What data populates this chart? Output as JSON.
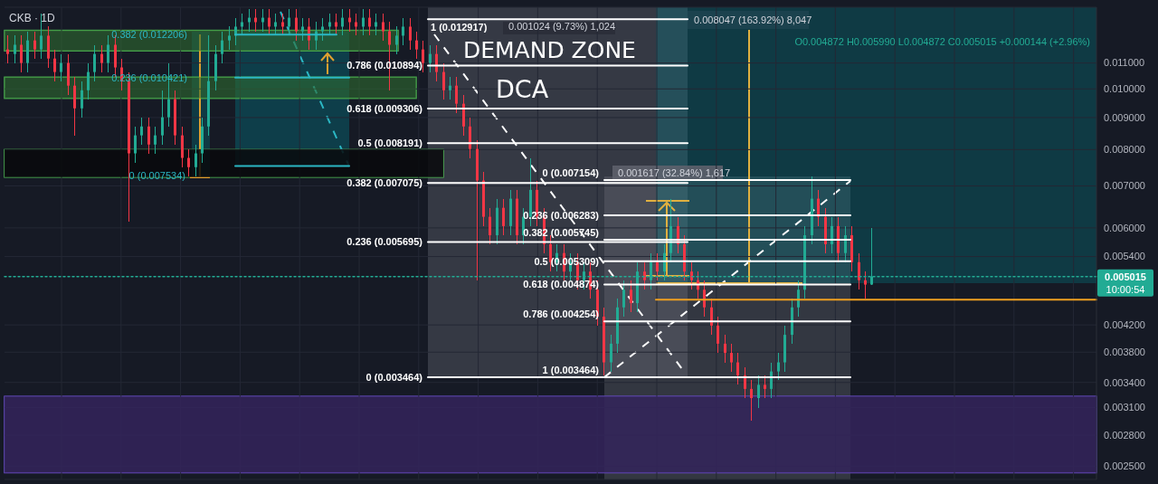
{
  "chart_data": {
    "type": "candlestick",
    "title": "CKB · 1D",
    "categories": [
      null,
      null,
      null,
      null,
      null,
      null,
      null,
      null,
      null,
      null,
      null,
      null,
      null,
      null,
      null,
      null,
      null,
      null,
      null,
      null,
      null,
      null,
      null,
      null,
      null,
      null,
      null,
      null,
      null,
      null,
      null,
      null,
      null,
      null,
      null,
      null,
      null,
      null,
      null,
      null,
      null,
      null,
      null,
      null,
      null,
      null,
      null,
      null,
      null,
      null,
      null,
      null,
      null,
      null,
      null,
      null,
      null,
      null,
      null,
      null,
      null,
      null,
      null,
      null,
      null,
      null,
      null,
      null,
      null,
      null,
      null,
      null,
      null,
      null,
      null,
      null,
      null,
      null,
      null,
      null,
      null,
      null,
      null,
      null,
      null,
      null,
      null,
      null,
      null,
      null,
      null,
      null,
      null,
      null,
      null,
      null,
      null,
      null,
      null,
      null,
      null,
      null,
      null,
      null,
      null,
      null,
      null,
      null,
      null,
      null,
      null,
      null,
      null,
      null,
      null,
      null,
      null,
      null,
      null,
      null,
      null,
      null,
      null,
      null,
      null,
      null,
      null,
      null,
      null,
      null,
      null,
      null,
      null,
      null,
      null,
      null,
      null,
      null,
      null,
      null,
      null,
      null,
      null,
      null,
      null,
      null,
      null,
      null,
      null,
      null,
      null,
      null,
      null,
      null,
      null,
      null,
      null,
      null,
      null,
      null,
      null,
      null,
      null
    ],
    "ohlc": [
      [
        0.01156,
        0.01216,
        0.011,
        0.01137
      ],
      [
        0.01137,
        0.01216,
        0.011,
        0.01176
      ],
      [
        0.01176,
        0.01216,
        0.01064,
        0.011
      ],
      [
        0.011,
        0.01236,
        0.01064,
        0.01195
      ],
      [
        0.01195,
        0.01236,
        0.01118,
        0.01156
      ],
      [
        0.01156,
        0.01321,
        0.01118,
        0.01216
      ],
      [
        0.01216,
        0.01257,
        0.01082,
        0.01118
      ],
      [
        0.01118,
        0.01156,
        0.01029,
        0.01064
      ],
      [
        0.01064,
        0.01137,
        0.01029,
        0.011
      ],
      [
        0.011,
        0.01137,
        0.00979,
        0.01012
      ],
      [
        0.01012,
        0.01046,
        0.00843,
        0.00931
      ],
      [
        0.00931,
        0.01029,
        0.00901,
        0.00995
      ],
      [
        0.00995,
        0.011,
        0.00963,
        0.01064
      ],
      [
        0.01064,
        0.01176,
        0.01029,
        0.01137
      ],
      [
        0.01137,
        0.01176,
        0.01064,
        0.011
      ],
      [
        0.011,
        0.01216,
        0.01064,
        0.01176
      ],
      [
        0.01176,
        0.01216,
        0.01046,
        0.01082
      ],
      [
        0.01082,
        0.01118,
        0.00995,
        0.01029
      ],
      [
        0.01029,
        0.01064,
        0.00614,
        0.00789
      ],
      [
        0.00789,
        0.00871,
        0.00763,
        0.00843
      ],
      [
        0.00843,
        0.00901,
        0.00815,
        0.00871
      ],
      [
        0.00871,
        0.00901,
        0.00789,
        0.00815
      ],
      [
        0.00815,
        0.00871,
        0.00789,
        0.00843
      ],
      [
        0.00843,
        0.00995,
        0.00815,
        0.00901
      ],
      [
        0.00901,
        0.011,
        0.00871,
        0.00963
      ],
      [
        0.00963,
        0.00995,
        0.00815,
        0.00843
      ],
      [
        0.00843,
        0.00871,
        0.0075,
        0.00776
      ],
      [
        0.00776,
        0.00802,
        0.00726,
        0.0075
      ],
      [
        0.0075,
        0.00815,
        0.00726,
        0.00789
      ],
      [
        0.00789,
        0.00901,
        0.00763,
        0.00871
      ],
      [
        0.00871,
        0.01216,
        0.00843,
        0.01029
      ],
      [
        0.01029,
        0.01176,
        0.00995,
        0.01137
      ],
      [
        0.01137,
        0.01236,
        0.011,
        0.01195
      ],
      [
        0.01195,
        0.01257,
        0.01156,
        0.01216
      ],
      [
        0.01216,
        0.01299,
        0.01176,
        0.01257
      ],
      [
        0.01257,
        0.01321,
        0.01216,
        0.01278
      ],
      [
        0.01278,
        0.01343,
        0.01236,
        0.01299
      ],
      [
        0.01299,
        0.01343,
        0.01236,
        0.01278
      ],
      [
        0.01278,
        0.01343,
        0.01236,
        0.01299
      ],
      [
        0.01299,
        0.01343,
        0.01216,
        0.01257
      ],
      [
        0.01257,
        0.01321,
        0.01216,
        0.01278
      ],
      [
        0.01278,
        0.01321,
        0.01216,
        0.01257
      ],
      [
        0.01257,
        0.01343,
        0.01216,
        0.01299
      ],
      [
        0.01299,
        0.01343,
        0.01195,
        0.01236
      ],
      [
        0.01236,
        0.01299,
        0.01195,
        0.01257
      ],
      [
        0.01257,
        0.01299,
        0.01156,
        0.01195
      ],
      [
        0.01195,
        0.01278,
        0.01156,
        0.01236
      ],
      [
        0.01236,
        0.01299,
        0.01195,
        0.01257
      ],
      [
        0.01257,
        0.01321,
        0.01216,
        0.01278
      ],
      [
        0.01278,
        0.01321,
        0.01216,
        0.01257
      ],
      [
        0.01257,
        0.01343,
        0.01216,
        0.01299
      ],
      [
        0.01299,
        0.01343,
        0.01236,
        0.01278
      ],
      [
        0.01278,
        0.01321,
        0.01216,
        0.01257
      ],
      [
        0.01257,
        0.01343,
        0.01216,
        0.01299
      ],
      [
        0.01299,
        0.01343,
        0.01216,
        0.01257
      ],
      [
        0.01257,
        0.01321,
        0.01216,
        0.01278
      ],
      [
        0.01278,
        0.01321,
        0.01195,
        0.01236
      ],
      [
        0.01236,
        0.01278,
        0.00995,
        0.01176
      ],
      [
        0.01176,
        0.01257,
        0.01137,
        0.01216
      ],
      [
        0.01216,
        0.01299,
        0.01176,
        0.01257
      ],
      [
        0.01257,
        0.01299,
        0.01156,
        0.01195
      ],
      [
        0.01195,
        0.01236,
        0.01118,
        0.01156
      ],
      [
        0.01156,
        0.01195,
        0.01064,
        0.011
      ],
      [
        0.011,
        0.01176,
        0.01064,
        0.01137
      ],
      [
        0.01137,
        0.01176,
        0.01029,
        0.01064
      ],
      [
        0.01064,
        0.011,
        0.00963,
        0.00995
      ],
      [
        0.00995,
        0.01046,
        0.00963,
        0.01012
      ],
      [
        0.01012,
        0.01046,
        0.00916,
        0.00947
      ],
      [
        0.00947,
        0.00979,
        0.00843,
        0.00871
      ],
      [
        0.00871,
        0.00901,
        0.00776,
        0.00802
      ],
      [
        0.00802,
        0.00829,
        0.00495,
        0.00714
      ],
      [
        0.00714,
        0.00738,
        0.00604,
        0.00625
      ],
      [
        0.00625,
        0.00646,
        0.00565,
        0.00584
      ],
      [
        0.00584,
        0.00668,
        0.00565,
        0.00646
      ],
      [
        0.00646,
        0.00668,
        0.00584,
        0.00604
      ],
      [
        0.00604,
        0.0069,
        0.00584,
        0.00668
      ],
      [
        0.00668,
        0.0069,
        0.00565,
        0.00584
      ],
      [
        0.00584,
        0.00646,
        0.00565,
        0.00625
      ],
      [
        0.00625,
        0.00776,
        0.00604,
        0.0069
      ],
      [
        0.0069,
        0.00714,
        0.00604,
        0.00625
      ],
      [
        0.00625,
        0.00646,
        0.00547,
        0.00565
      ],
      [
        0.00565,
        0.00584,
        0.00511,
        0.00529
      ],
      [
        0.00529,
        0.00565,
        0.00511,
        0.00547
      ],
      [
        0.00547,
        0.00565,
        0.00495,
        0.00511
      ],
      [
        0.00511,
        0.00547,
        0.00495,
        0.00529
      ],
      [
        0.00529,
        0.00547,
        0.00478,
        0.00495
      ],
      [
        0.00495,
        0.00529,
        0.00478,
        0.00511
      ],
      [
        0.00511,
        0.00529,
        0.00463,
        0.00478
      ],
      [
        0.00478,
        0.00495,
        0.00419,
        0.00433
      ],
      [
        0.00433,
        0.00448,
        0.00349,
        0.00366
      ],
      [
        0.00366,
        0.00405,
        0.00354,
        0.00392
      ],
      [
        0.00392,
        0.00463,
        0.00379,
        0.00448
      ],
      [
        0.00448,
        0.00495,
        0.00433,
        0.00478
      ],
      [
        0.00478,
        0.00495,
        0.0044,
        0.00455
      ],
      [
        0.00455,
        0.00529,
        0.0044,
        0.00511
      ],
      [
        0.00511,
        0.00529,
        0.00478,
        0.00495
      ],
      [
        0.00495,
        0.00547,
        0.00478,
        0.00529
      ],
      [
        0.00529,
        0.00547,
        0.00495,
        0.00511
      ],
      [
        0.00511,
        0.00565,
        0.00495,
        0.00547
      ],
      [
        0.00547,
        0.00668,
        0.00529,
        0.00604
      ],
      [
        0.00604,
        0.00625,
        0.00547,
        0.00565
      ],
      [
        0.00565,
        0.00584,
        0.00495,
        0.00511
      ],
      [
        0.00511,
        0.00529,
        0.00478,
        0.00495
      ],
      [
        0.00495,
        0.00511,
        0.00463,
        0.00478
      ],
      [
        0.00478,
        0.00495,
        0.00433,
        0.00448
      ],
      [
        0.00448,
        0.00463,
        0.00405,
        0.00419
      ],
      [
        0.00419,
        0.00433,
        0.00379,
        0.00392
      ],
      [
        0.00392,
        0.00405,
        0.00366,
        0.00379
      ],
      [
        0.00379,
        0.00392,
        0.00354,
        0.00366
      ],
      [
        0.00366,
        0.00379,
        0.00337,
        0.00349
      ],
      [
        0.00349,
        0.0036,
        0.00321,
        0.00332
      ],
      [
        0.00332,
        0.00343,
        0.00295,
        0.00321
      ],
      [
        0.00321,
        0.00349,
        0.0031,
        0.00337
      ],
      [
        0.00337,
        0.00349,
        0.00321,
        0.00332
      ],
      [
        0.00332,
        0.00366,
        0.00321,
        0.00354
      ],
      [
        0.00354,
        0.00379,
        0.00343,
        0.00366
      ],
      [
        0.00366,
        0.00419,
        0.00354,
        0.00405
      ],
      [
        0.00405,
        0.00463,
        0.00392,
        0.00448
      ],
      [
        0.00448,
        0.00495,
        0.00433,
        0.00478
      ],
      [
        0.00478,
        0.00604,
        0.00463,
        0.00584
      ],
      [
        0.00584,
        0.00726,
        0.00565,
        0.00668
      ],
      [
        0.00668,
        0.0069,
        0.00604,
        0.00625
      ],
      [
        0.00625,
        0.00646,
        0.00547,
        0.00565
      ],
      [
        0.00565,
        0.00625,
        0.00547,
        0.00604
      ],
      [
        0.00604,
        0.00625,
        0.00529,
        0.00547
      ],
      [
        0.00547,
        0.00604,
        0.00529,
        0.00584
      ],
      [
        0.00584,
        0.00604,
        0.00511,
        0.00529
      ],
      [
        0.00529,
        0.00547,
        0.00478,
        0.00495
      ],
      [
        0.00495,
        0.00511,
        0.00463,
        0.004871
      ],
      [
        0.004872,
        0.00599,
        0.004872,
        0.005015
      ],
      null,
      null,
      null,
      null,
      null,
      null,
      null,
      null,
      null,
      null,
      null,
      null,
      null,
      null,
      null,
      null,
      null,
      null,
      null,
      null,
      null,
      null,
      null,
      null,
      null,
      null,
      null,
      null,
      null,
      null,
      null,
      null,
      null
    ],
    "log": true,
    "ylim": [
      0.00238,
      0.0135
    ],
    "yticks": [
      {
        "value": 0.0025,
        "label": "0.002500"
      },
      {
        "value": 0.0028,
        "label": "0.002800"
      },
      {
        "value": 0.0031,
        "label": "0.003100"
      },
      {
        "value": 0.0034,
        "label": "0.003400"
      },
      {
        "value": 0.0038,
        "label": "0.003800"
      },
      {
        "value": 0.0042,
        "label": "0.004200"
      },
      {
        "value": 0.0054,
        "label": "0.005400"
      },
      {
        "value": 0.006,
        "label": "0.006000"
      },
      {
        "value": 0.007,
        "label": "0.007000"
      },
      {
        "value": 0.008,
        "label": "0.008000"
      },
      {
        "value": 0.009,
        "label": "0.009000"
      },
      {
        "value": 0.01,
        "label": "0.010000"
      },
      {
        "value": 0.011,
        "label": "0.011000"
      }
    ],
    "grid": true,
    "tick_labels": "y",
    "bands": [
      {
        "axis": "y",
        "from": 0.00244,
        "to": 0.00323,
        "color": "#34245c"
      },
      {
        "axis": "y",
        "from": 0.0115,
        "to": 0.0124,
        "color": "#2e6b30"
      },
      {
        "axis": "y",
        "from": 0.00966,
        "to": 0.01044,
        "color": "#2e6b30"
      },
      {
        "axis": "y",
        "from": 0.00723,
        "to": 0.008,
        "color": "#08090c"
      }
    ],
    "ref_lines": [
      {
        "axis": "y",
        "value": 0.012206,
        "label": "0.382 (0.012206)",
        "color": "#2bb7c4"
      },
      {
        "axis": "y",
        "value": 0.010421,
        "label": "0.236 (0.010421)",
        "color": "#2bb7c4"
      },
      {
        "axis": "y",
        "value": 0.007534,
        "label": "0 (0.007534)",
        "color": "#2bb7c4"
      },
      {
        "axis": "y",
        "value": 0.012917,
        "label": "1 (0.012917)",
        "color": "#ffffff"
      },
      {
        "axis": "y",
        "value": 0.010894,
        "label": "0.786 (0.010894)",
        "color": "#ffffff"
      },
      {
        "axis": "y",
        "value": 0.009306,
        "label": "0.618 (0.009306)",
        "color": "#ffffff"
      },
      {
        "axis": "y",
        "value": 0.008191,
        "label": "0.5 (0.008191)",
        "color": "#ffffff"
      },
      {
        "axis": "y",
        "value": 0.007075,
        "label": "0.382 (0.007075)",
        "color": "#ffffff"
      },
      {
        "axis": "y",
        "value": 0.005695,
        "label": "0.236 (0.005695)",
        "color": "#ffffff"
      },
      {
        "axis": "y",
        "value": 0.003464,
        "label": "0 (0.003464)",
        "color": "#ffffff"
      },
      {
        "axis": "y",
        "value": 0.007154,
        "label": "0 (0.007154)",
        "color": "#ffffff"
      },
      {
        "axis": "y",
        "value": 0.006283,
        "label": "0.236 (0.006283)",
        "color": "#ffffff"
      },
      {
        "axis": "y",
        "value": 0.005745,
        "label": "0.382 (0.005745)",
        "color": "#ffffff"
      },
      {
        "axis": "y",
        "value": 0.005309,
        "label": "0.5 (0.005309)",
        "color": "#ffffff"
      },
      {
        "axis": "y",
        "value": 0.004874,
        "label": "0.618 (0.004874)",
        "color": "#ffffff"
      },
      {
        "axis": "y",
        "value": 0.004254,
        "label": "0.786 (0.004254)",
        "color": "#ffffff"
      },
      {
        "axis": "y",
        "value": 0.00461,
        "color": "#f0a020"
      },
      {
        "axis": "y",
        "value": 0.005015,
        "label": "0.005015",
        "color": "#22ab94",
        "line_style": "dotted"
      }
    ],
    "annotations": [
      "DEMAND ZONE",
      "DCA",
      "O0.004872 H0.005990 L0.004872 C0.005015 +0.000144 (+2.96%)",
      "0.008047 (163.92%) 8,047",
      "0.001617 (32.84%) 1,617",
      "0.001024 (9.73%) 1,024",
      "10:00:54",
      {
        "text": "1 (0.003464)",
        "y": 0.003464
      }
    ]
  }
}
